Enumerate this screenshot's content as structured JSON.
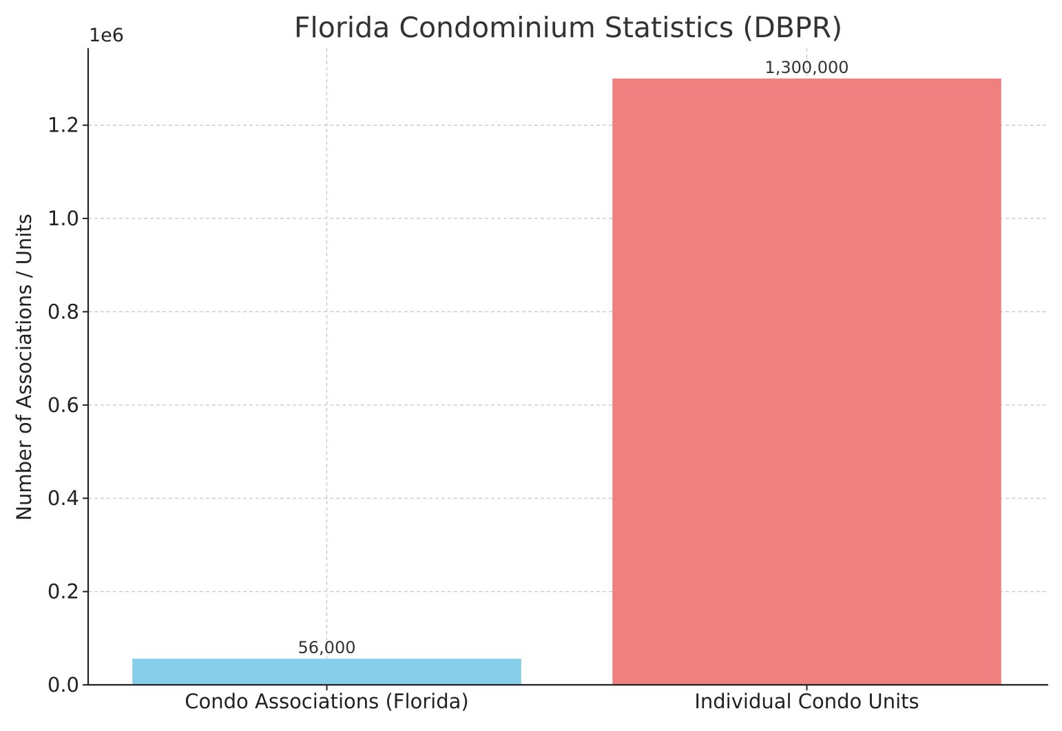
{
  "chart_data": {
    "type": "bar",
    "title": "Florida Condominium Statistics (DBPR)",
    "xlabel": "",
    "ylabel": "Number of Associations / Units",
    "y_offset_label": "1e6",
    "categories": [
      "Condo Associations (Florida)",
      "Individual Condo Units"
    ],
    "values": [
      56000,
      1300000
    ],
    "data_labels": [
      "56,000",
      "1,300,000"
    ],
    "colors": [
      "#87CEEB",
      "#F08080"
    ],
    "ylim": [
      0,
      1365000
    ],
    "yticks": [
      0,
      200000,
      400000,
      600000,
      800000,
      1000000,
      1200000
    ],
    "ytick_labels": [
      "0.0",
      "0.2",
      "0.4",
      "0.6",
      "0.8",
      "1.0",
      "1.2"
    ],
    "grid": true,
    "legend": "none"
  }
}
